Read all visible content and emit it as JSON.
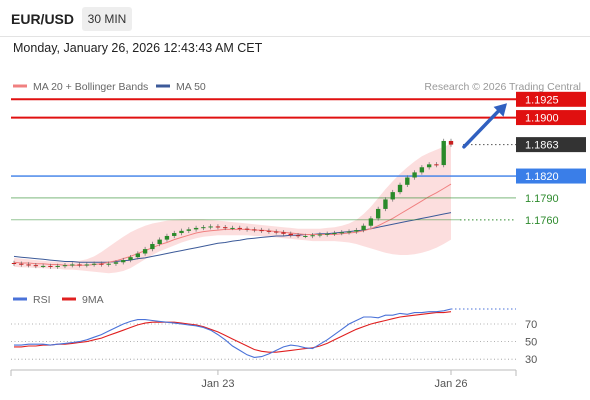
{
  "header": {
    "symbol": "EUR/USD",
    "timeframe": "30 MIN",
    "timestamp": "Monday, January 26, 2026 12:43:43 AM CET"
  },
  "legend": {
    "ma20": "MA 20 + Bollinger Bands",
    "ma50": "MA 50",
    "credit": "Research © 2026 Trading Central",
    "colors": {
      "ma20": "#f08080",
      "ma50": "#3c5a99"
    }
  },
  "rsi_legend": {
    "rsi": "RSI",
    "ma9": "9MA",
    "colors": {
      "rsi": "#4a72d8",
      "ma9": "#e02020"
    }
  },
  "levels": [
    {
      "value": 1.1925,
      "label": "1.1925",
      "kind": "resistance",
      "color": "#e01010"
    },
    {
      "value": 1.19,
      "label": "1.1900",
      "kind": "resistance",
      "color": "#e01010"
    },
    {
      "value": 1.1863,
      "label": "1.1863",
      "kind": "last-price",
      "color": "#333333"
    },
    {
      "value": 1.182,
      "label": "1.1820",
      "kind": "pivot",
      "color": "#3a7ee8"
    },
    {
      "value": 1.179,
      "label": "1.1790",
      "kind": "support",
      "color": "#2e8b2e"
    },
    {
      "value": 1.176,
      "label": "1.1760",
      "kind": "support",
      "color": "#2e8b2e"
    }
  ],
  "chart_data": {
    "type": "line",
    "price": {
      "close": [
        1.17,
        1.1699,
        1.1698,
        1.1697,
        1.1697,
        1.1696,
        1.1697,
        1.1698,
        1.1699,
        1.1698,
        1.1699,
        1.17,
        1.1699,
        1.17,
        1.1702,
        1.1705,
        1.1709,
        1.1714,
        1.172,
        1.1727,
        1.1733,
        1.1738,
        1.1742,
        1.1745,
        1.1747,
        1.1749,
        1.175,
        1.1751,
        1.175,
        1.1749,
        1.1749,
        1.1748,
        1.1747,
        1.1746,
        1.1745,
        1.1744,
        1.1743,
        1.1741,
        1.1739,
        1.1738,
        1.1738,
        1.1739,
        1.174,
        1.1741,
        1.1742,
        1.1743,
        1.1744,
        1.1746,
        1.1752,
        1.1762,
        1.1775,
        1.1788,
        1.1798,
        1.1808,
        1.1818,
        1.1825,
        1.1832,
        1.1836,
        1.1835,
        1.1868,
        1.1863
      ],
      "ma20": [
        1.1702,
        1.1701,
        1.1701,
        1.17,
        1.17,
        1.1699,
        1.1699,
        1.1698,
        1.1698,
        1.1698,
        1.1698,
        1.1699,
        1.17,
        1.1702,
        1.1704,
        1.1707,
        1.171,
        1.1714,
        1.1718,
        1.1722,
        1.1726,
        1.1729,
        1.1733,
        1.1736,
        1.1739,
        1.1742,
        1.1744,
        1.1745,
        1.1746,
        1.1747,
        1.1747,
        1.1747,
        1.1747,
        1.1746,
        1.1746,
        1.1745,
        1.1744,
        1.1743,
        1.1742,
        1.1741,
        1.174,
        1.174,
        1.174,
        1.174,
        1.174,
        1.1741,
        1.1742,
        1.1743,
        1.1745,
        1.1748,
        1.1752,
        1.1757,
        1.1762,
        1.1768,
        1.1774,
        1.178,
        1.1786,
        1.1792,
        1.1797,
        1.1803,
        1.1809
      ],
      "ma50": [
        1.171,
        1.1709,
        1.1708,
        1.1707,
        1.1706,
        1.1705,
        1.1704,
        1.1703,
        1.1703,
        1.1702,
        1.1702,
        1.1702,
        1.1702,
        1.1702,
        1.1703,
        1.1704,
        1.1705,
        1.1707,
        1.1708,
        1.171,
        1.1712,
        1.1714,
        1.1716,
        1.1718,
        1.172,
        1.1722,
        1.1724,
        1.1726,
        1.1728,
        1.1729,
        1.1731,
        1.1732,
        1.1734,
        1.1735,
        1.1736,
        1.1737,
        1.1738,
        1.1738,
        1.1739,
        1.1739,
        1.174,
        1.174,
        1.1741,
        1.1741,
        1.1742,
        1.1743,
        1.1744,
        1.1745,
        1.1746,
        1.1748,
        1.175,
        1.1752,
        1.1754,
        1.1756,
        1.1758,
        1.176,
        1.1762,
        1.1764,
        1.1766,
        1.1768,
        1.177
      ],
      "bb_upper": [
        1.1708,
        1.1707,
        1.1706,
        1.1705,
        1.1704,
        1.1703,
        1.1703,
        1.1702,
        1.1703,
        1.1704,
        1.1706,
        1.171,
        1.1716,
        1.1723,
        1.173,
        1.1737,
        1.1743,
        1.1748,
        1.1752,
        1.1755,
        1.1757,
        1.1759,
        1.176,
        1.1761,
        1.1761,
        1.1761,
        1.1761,
        1.176,
        1.1759,
        1.1758,
        1.1757,
        1.1756,
        1.1755,
        1.1754,
        1.1753,
        1.1752,
        1.1751,
        1.175,
        1.1749,
        1.1748,
        1.1748,
        1.1748,
        1.1748,
        1.1749,
        1.175,
        1.1752,
        1.1755,
        1.176,
        1.1768,
        1.1778,
        1.179,
        1.1802,
        1.1813,
        1.1823,
        1.1832,
        1.184,
        1.1847,
        1.1852,
        1.1856,
        1.186,
        1.1864
      ],
      "bb_lower": [
        1.1696,
        1.1695,
        1.1695,
        1.1694,
        1.1694,
        1.1693,
        1.1693,
        1.1692,
        1.1692,
        1.1691,
        1.169,
        1.1689,
        1.1688,
        1.1687,
        1.1688,
        1.169,
        1.1694,
        1.17,
        1.1706,
        1.1712,
        1.1717,
        1.1721,
        1.1725,
        1.1729,
        1.1732,
        1.1735,
        1.1737,
        1.1738,
        1.1739,
        1.1739,
        1.1739,
        1.1739,
        1.1739,
        1.1738,
        1.1738,
        1.1737,
        1.1736,
        1.1735,
        1.1734,
        1.1733,
        1.1732,
        1.1731,
        1.1731,
        1.1731,
        1.1731,
        1.173,
        1.1729,
        1.1727,
        1.1724,
        1.1721,
        1.1718,
        1.1715,
        1.1713,
        1.1712,
        1.1712,
        1.1713,
        1.1715,
        1.1718,
        1.1722,
        1.1727,
        1.1733
      ]
    },
    "rsi": {
      "values": [
        46,
        46,
        47,
        47,
        47,
        46,
        47,
        48,
        49,
        50,
        52,
        55,
        58,
        62,
        66,
        70,
        73,
        75,
        75,
        74,
        73,
        72,
        71,
        70,
        69,
        68,
        66,
        63,
        58,
        52,
        45,
        40,
        35,
        32,
        33,
        36,
        40,
        44,
        46,
        45,
        43,
        42,
        47,
        52,
        58,
        64,
        70,
        74,
        78,
        78,
        77,
        80,
        80,
        82,
        81,
        83,
        83,
        84,
        84,
        85,
        87
      ],
      "ma9": [
        44,
        44,
        45,
        45,
        46,
        46,
        47,
        47,
        48,
        49,
        50,
        52,
        54,
        57,
        60,
        63,
        66,
        69,
        71,
        72,
        72,
        72,
        72,
        71,
        70,
        69,
        67,
        64,
        61,
        57,
        53,
        49,
        45,
        41,
        39,
        38,
        38,
        39,
        40,
        41,
        42,
        43,
        45,
        48,
        52,
        56,
        60,
        64,
        67,
        70,
        72,
        74,
        76,
        78,
        79,
        80,
        81,
        82,
        83,
        83,
        84
      ],
      "levels": [
        70,
        50,
        30
      ]
    },
    "x_tick_labels": [
      "Jan 23",
      "Jan 26"
    ],
    "y_tick_labels": [
      "1.1925",
      "1.1900",
      "1.1863",
      "1.1820",
      "1.1790",
      "1.1760"
    ],
    "rsi_tick_labels": [
      "70",
      "50",
      "30"
    ],
    "ylim": [
      1.1675,
      1.1935
    ],
    "rsi_ylim": [
      20,
      95
    ],
    "legend_position": "top",
    "forecast_arrow": {
      "from": 1.186,
      "to": 1.1925,
      "color": "#3060c0"
    }
  }
}
